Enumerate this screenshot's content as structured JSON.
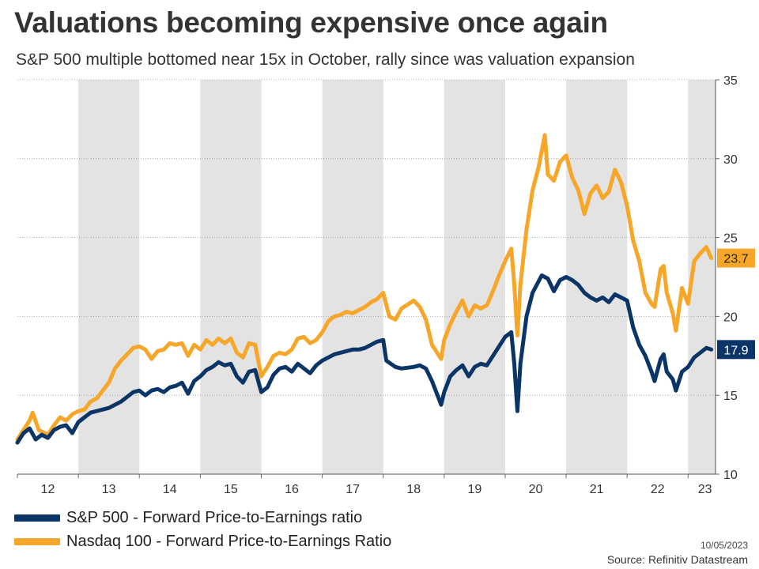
{
  "title": "Valuations becoming expensive once again",
  "subtitle": "S&P 500 multiple bottomed near 15x in October, rally since was valuation expansion",
  "date": "10/05/2023",
  "source": "Source: Refinitiv Datastream",
  "chart_data": {
    "type": "line",
    "x_tick_labels": [
      "12",
      "13",
      "14",
      "15",
      "16",
      "17",
      "18",
      "19",
      "20",
      "21",
      "22",
      "23"
    ],
    "x_range": [
      2012.0,
      2023.45
    ],
    "ylim": [
      10,
      35
    ],
    "y_ticks": [
      10,
      15,
      20,
      25,
      30,
      35
    ],
    "y_axis_side": "right",
    "shaded_years": [
      2013,
      2015,
      2017,
      2019,
      2021,
      2023
    ],
    "grid": true,
    "legend_placement": "bottom-left",
    "series": [
      {
        "name": "S&P 500 - Forward Price-to-Earnings ratio",
        "color": "#0b3566",
        "end_label": "17.9",
        "points": [
          [
            2012.0,
            12.0
          ],
          [
            2012.1,
            12.6
          ],
          [
            2012.2,
            12.9
          ],
          [
            2012.3,
            12.2
          ],
          [
            2012.4,
            12.5
          ],
          [
            2012.5,
            12.3
          ],
          [
            2012.6,
            12.8
          ],
          [
            2012.7,
            13.0
          ],
          [
            2012.8,
            13.1
          ],
          [
            2012.9,
            12.6
          ],
          [
            2013.0,
            13.3
          ],
          [
            2013.1,
            13.6
          ],
          [
            2013.2,
            13.9
          ],
          [
            2013.3,
            14.0
          ],
          [
            2013.4,
            14.1
          ],
          [
            2013.5,
            14.2
          ],
          [
            2013.6,
            14.4
          ],
          [
            2013.7,
            14.6
          ],
          [
            2013.8,
            14.9
          ],
          [
            2013.9,
            15.2
          ],
          [
            2014.0,
            15.3
          ],
          [
            2014.1,
            15.0
          ],
          [
            2014.2,
            15.3
          ],
          [
            2014.3,
            15.4
          ],
          [
            2014.4,
            15.2
          ],
          [
            2014.5,
            15.5
          ],
          [
            2014.6,
            15.6
          ],
          [
            2014.7,
            15.8
          ],
          [
            2014.8,
            15.1
          ],
          [
            2014.9,
            15.9
          ],
          [
            2015.0,
            16.2
          ],
          [
            2015.1,
            16.6
          ],
          [
            2015.2,
            16.8
          ],
          [
            2015.3,
            17.1
          ],
          [
            2015.4,
            16.9
          ],
          [
            2015.5,
            17.0
          ],
          [
            2015.6,
            16.2
          ],
          [
            2015.7,
            15.8
          ],
          [
            2015.8,
            16.5
          ],
          [
            2015.9,
            16.6
          ],
          [
            2016.0,
            15.2
          ],
          [
            2016.1,
            15.5
          ],
          [
            2016.2,
            16.3
          ],
          [
            2016.3,
            16.7
          ],
          [
            2016.4,
            16.8
          ],
          [
            2016.5,
            16.5
          ],
          [
            2016.6,
            17.0
          ],
          [
            2016.7,
            16.7
          ],
          [
            2016.8,
            16.4
          ],
          [
            2016.9,
            16.9
          ],
          [
            2017.0,
            17.2
          ],
          [
            2017.1,
            17.4
          ],
          [
            2017.2,
            17.6
          ],
          [
            2017.3,
            17.7
          ],
          [
            2017.4,
            17.8
          ],
          [
            2017.5,
            17.9
          ],
          [
            2017.6,
            17.9
          ],
          [
            2017.7,
            18.0
          ],
          [
            2017.8,
            18.2
          ],
          [
            2017.9,
            18.4
          ],
          [
            2018.0,
            18.5
          ],
          [
            2018.05,
            17.2
          ],
          [
            2018.2,
            16.8
          ],
          [
            2018.3,
            16.7
          ],
          [
            2018.5,
            16.8
          ],
          [
            2018.6,
            16.9
          ],
          [
            2018.7,
            16.7
          ],
          [
            2018.8,
            15.9
          ],
          [
            2018.95,
            14.4
          ],
          [
            2019.0,
            15.2
          ],
          [
            2019.1,
            16.2
          ],
          [
            2019.2,
            16.6
          ],
          [
            2019.3,
            16.9
          ],
          [
            2019.4,
            16.2
          ],
          [
            2019.5,
            16.8
          ],
          [
            2019.6,
            17.0
          ],
          [
            2019.7,
            16.9
          ],
          [
            2019.8,
            17.5
          ],
          [
            2019.9,
            18.1
          ],
          [
            2020.0,
            18.7
          ],
          [
            2020.1,
            19.0
          ],
          [
            2020.15,
            17.0
          ],
          [
            2020.2,
            14.0
          ],
          [
            2020.25,
            17.0
          ],
          [
            2020.35,
            20.0
          ],
          [
            2020.45,
            21.5
          ],
          [
            2020.6,
            22.6
          ],
          [
            2020.7,
            22.4
          ],
          [
            2020.8,
            21.6
          ],
          [
            2020.9,
            22.3
          ],
          [
            2021.0,
            22.5
          ],
          [
            2021.1,
            22.3
          ],
          [
            2021.2,
            22.0
          ],
          [
            2021.3,
            21.5
          ],
          [
            2021.4,
            21.2
          ],
          [
            2021.5,
            21.0
          ],
          [
            2021.6,
            21.2
          ],
          [
            2021.7,
            20.9
          ],
          [
            2021.8,
            21.4
          ],
          [
            2021.9,
            21.2
          ],
          [
            2022.0,
            21.0
          ],
          [
            2022.1,
            19.3
          ],
          [
            2022.2,
            18.2
          ],
          [
            2022.3,
            17.5
          ],
          [
            2022.4,
            16.5
          ],
          [
            2022.45,
            15.9
          ],
          [
            2022.55,
            17.3
          ],
          [
            2022.6,
            17.6
          ],
          [
            2022.65,
            16.5
          ],
          [
            2022.75,
            16.0
          ],
          [
            2022.8,
            15.3
          ],
          [
            2022.9,
            16.5
          ],
          [
            2023.0,
            16.8
          ],
          [
            2023.1,
            17.4
          ],
          [
            2023.2,
            17.7
          ],
          [
            2023.3,
            18.0
          ],
          [
            2023.38,
            17.9
          ]
        ]
      },
      {
        "name": "Nasdaq 100 - Forward Price-to-Earnings Ratio",
        "color": "#f6a628",
        "end_label": "23.7",
        "points": [
          [
            2012.0,
            12.2
          ],
          [
            2012.1,
            12.8
          ],
          [
            2012.2,
            13.4
          ],
          [
            2012.25,
            13.9
          ],
          [
            2012.35,
            12.8
          ],
          [
            2012.5,
            12.5
          ],
          [
            2012.6,
            13.1
          ],
          [
            2012.7,
            13.6
          ],
          [
            2012.8,
            13.4
          ],
          [
            2012.9,
            13.8
          ],
          [
            2013.0,
            14.0
          ],
          [
            2013.1,
            14.1
          ],
          [
            2013.2,
            14.6
          ],
          [
            2013.3,
            14.8
          ],
          [
            2013.4,
            15.3
          ],
          [
            2013.5,
            15.8
          ],
          [
            2013.6,
            16.7
          ],
          [
            2013.7,
            17.2
          ],
          [
            2013.8,
            17.6
          ],
          [
            2013.9,
            18.0
          ],
          [
            2014.0,
            18.1
          ],
          [
            2014.1,
            17.9
          ],
          [
            2014.2,
            17.3
          ],
          [
            2014.3,
            17.8
          ],
          [
            2014.4,
            17.9
          ],
          [
            2014.5,
            18.3
          ],
          [
            2014.6,
            18.2
          ],
          [
            2014.7,
            18.3
          ],
          [
            2014.8,
            17.5
          ],
          [
            2014.9,
            18.2
          ],
          [
            2015.0,
            17.9
          ],
          [
            2015.1,
            18.5
          ],
          [
            2015.2,
            18.2
          ],
          [
            2015.3,
            18.6
          ],
          [
            2015.4,
            18.3
          ],
          [
            2015.5,
            18.6
          ],
          [
            2015.6,
            17.7
          ],
          [
            2015.7,
            17.4
          ],
          [
            2015.8,
            18.3
          ],
          [
            2015.9,
            18.2
          ],
          [
            2016.0,
            16.2
          ],
          [
            2016.1,
            16.8
          ],
          [
            2016.2,
            17.5
          ],
          [
            2016.3,
            17.7
          ],
          [
            2016.4,
            17.6
          ],
          [
            2016.5,
            17.9
          ],
          [
            2016.6,
            18.6
          ],
          [
            2016.7,
            18.7
          ],
          [
            2016.8,
            18.3
          ],
          [
            2016.9,
            18.5
          ],
          [
            2017.0,
            19.0
          ],
          [
            2017.1,
            19.7
          ],
          [
            2017.2,
            20.0
          ],
          [
            2017.3,
            20.1
          ],
          [
            2017.4,
            20.3
          ],
          [
            2017.5,
            20.2
          ],
          [
            2017.6,
            20.4
          ],
          [
            2017.7,
            20.6
          ],
          [
            2017.8,
            20.9
          ],
          [
            2017.9,
            21.1
          ],
          [
            2018.0,
            21.5
          ],
          [
            2018.1,
            20.0
          ],
          [
            2018.2,
            19.8
          ],
          [
            2018.3,
            20.5
          ],
          [
            2018.5,
            21.0
          ],
          [
            2018.6,
            20.6
          ],
          [
            2018.7,
            19.8
          ],
          [
            2018.8,
            18.2
          ],
          [
            2018.95,
            17.3
          ],
          [
            2019.0,
            18.5
          ],
          [
            2019.1,
            19.5
          ],
          [
            2019.2,
            20.3
          ],
          [
            2019.3,
            21.0
          ],
          [
            2019.4,
            20.0
          ],
          [
            2019.5,
            20.7
          ],
          [
            2019.6,
            20.5
          ],
          [
            2019.7,
            20.7
          ],
          [
            2019.8,
            21.6
          ],
          [
            2019.9,
            22.6
          ],
          [
            2020.0,
            23.5
          ],
          [
            2020.1,
            24.3
          ],
          [
            2020.15,
            22.0
          ],
          [
            2020.2,
            18.8
          ],
          [
            2020.25,
            22.0
          ],
          [
            2020.35,
            25.5
          ],
          [
            2020.45,
            28.0
          ],
          [
            2020.55,
            29.5
          ],
          [
            2020.65,
            31.5
          ],
          [
            2020.7,
            29.0
          ],
          [
            2020.8,
            28.6
          ],
          [
            2020.9,
            29.8
          ],
          [
            2021.0,
            30.2
          ],
          [
            2021.1,
            28.8
          ],
          [
            2021.2,
            28.0
          ],
          [
            2021.3,
            26.5
          ],
          [
            2021.4,
            27.8
          ],
          [
            2021.5,
            28.3
          ],
          [
            2021.6,
            27.5
          ],
          [
            2021.7,
            27.9
          ],
          [
            2021.8,
            29.3
          ],
          [
            2021.9,
            28.5
          ],
          [
            2022.0,
            27.0
          ],
          [
            2022.1,
            24.8
          ],
          [
            2022.2,
            23.5
          ],
          [
            2022.3,
            21.5
          ],
          [
            2022.4,
            20.8
          ],
          [
            2022.45,
            20.6
          ],
          [
            2022.55,
            23.0
          ],
          [
            2022.6,
            23.2
          ],
          [
            2022.65,
            21.5
          ],
          [
            2022.75,
            20.2
          ],
          [
            2022.8,
            19.1
          ],
          [
            2022.9,
            21.8
          ],
          [
            2023.0,
            20.8
          ],
          [
            2023.1,
            23.5
          ],
          [
            2023.2,
            24.0
          ],
          [
            2023.3,
            24.4
          ],
          [
            2023.38,
            23.7
          ]
        ]
      }
    ]
  }
}
